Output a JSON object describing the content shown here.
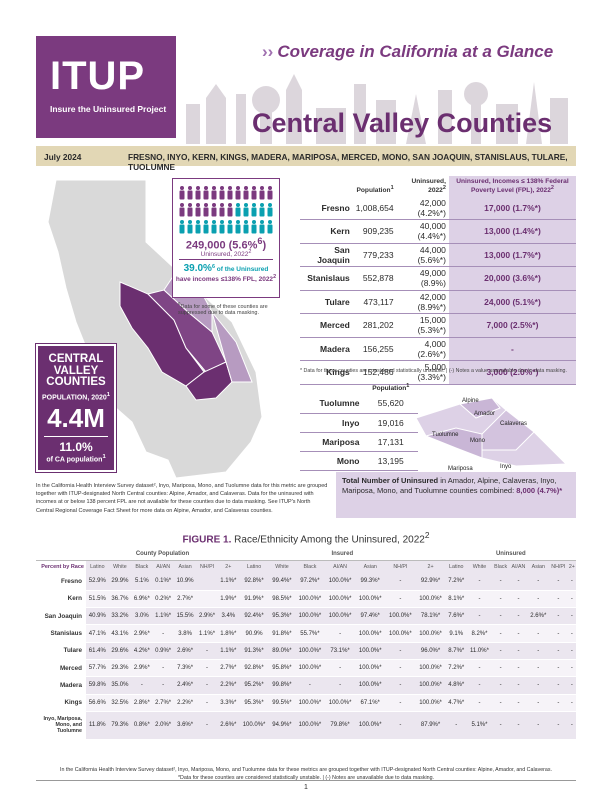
{
  "header": {
    "logo": "ITUP",
    "logo_sub": "Insure the Uninsured Project",
    "coverage_title": "Coverage in California at a Glance",
    "chevrons": "››",
    "title": "Central Valley Counties",
    "date": "July 2024",
    "counties": "FRESNO, INYO, KERN, KINGS, MADERA, MARIPOSA, MERCED, MONO, SAN JOAQUIN, STANISLAUS, TULARE, TUOLUMNE"
  },
  "colors": {
    "brand_purple": "#7b3a7f",
    "highlight": "#ddd1e6",
    "teal": "#0aa0b0",
    "tan": "#e2d7b5"
  },
  "region_box": {
    "line1": "CENTRAL",
    "line2": "VALLEY",
    "line3": "COUNTIES",
    "pop_label": "POPULATION, 2020",
    "pop_sup": "1",
    "pop_value": "4.4M",
    "share_value": "11.0%",
    "share_label": "of CA population",
    "share_sup": "1"
  },
  "uninsured_box": {
    "total": "249,000 (5.6%",
    "total_sup": "6",
    "total_close": ")",
    "total_label": "Uninsured, 2022",
    "total_label_sup": "2",
    "pct": "39.0%",
    "pct_sup": "6",
    "pct_text1": " of the Uninsured",
    "pct_text2": "have incomes ≤138% FPL, 2022",
    "pct_text2_sup": "2",
    "note": "Data for some of these counties are suppressed due to data masking.",
    "note_sup": "6"
  },
  "main_table": {
    "headers": [
      "",
      "Population",
      "Uninsured, 2022",
      "Uninsured, Incomes ≤ 138% Federal Poverty Level (FPL), 2022"
    ],
    "header_sups": [
      "",
      "1",
      "2",
      "2"
    ],
    "rows": [
      {
        "name": "Fresno",
        "pop": "1,008,654",
        "unins": "42,000 (4.2%*)",
        "low": "17,000 (1.7%*)"
      },
      {
        "name": "Kern",
        "pop": "909,235",
        "unins": "40,000 (4.4%*)",
        "low": "13,000 (1.4%*)"
      },
      {
        "name": "San Joaquin",
        "pop": "779,233",
        "unins": "44,000 (5.6%*)",
        "low": "13,000 (1.7%*)"
      },
      {
        "name": "Stanislaus",
        "pop": "552,878",
        "unins": "49,000 (8.9%)",
        "low": "20,000 (3.6%*)"
      },
      {
        "name": "Tulare",
        "pop": "473,117",
        "unins": "42,000 (8.9%*)",
        "low": "24,000 (5.1%*)"
      },
      {
        "name": "Merced",
        "pop": "281,202",
        "unins": "15,000 (5.3%*)",
        "low": "7,000 (2.5%*)"
      },
      {
        "name": "Madera",
        "pop": "156,255",
        "unins": "4,000 (2.6%*)",
        "low": "-"
      },
      {
        "name": "Kings",
        "pop": "152,486",
        "unins": "5,000 (3.3%*)",
        "low": "3,000 (2.0%*)"
      }
    ],
    "note": "* Data for these counties are considered statistically unstable. | (-) Notes a value unavailable due to data masking."
  },
  "small_table": {
    "header": "Population",
    "header_sup": "1",
    "rows": [
      {
        "name": "Tuolumne",
        "pop": "55,620"
      },
      {
        "name": "Inyo",
        "pop": "19,016"
      },
      {
        "name": "Mariposa",
        "pop": "17,131"
      },
      {
        "name": "Mono",
        "pop": "13,195"
      }
    ]
  },
  "mini_map_labels": [
    "Alpine",
    "Amador",
    "Calaveras",
    "Tuolumne",
    "Mono",
    "Mariposa",
    "Inyo"
  ],
  "total_box": {
    "bold": "Total Number of Uninsured",
    "text": " in Amador, Alpine, Calaveras, Inyo, Mariposa, Mono, and Tuolumne counties combined: ",
    "value": "8,000 (4.7%)*"
  },
  "paragraph": "In the California Health Interview Survey dataset², Inyo, Mariposa, Mono, and Tuolumne data for this metric are grouped together with ITUP-designated North Central counties: Alpine, Amador, and Calaveras. Data for the uninsured with incomes at or below 138 percent FPL are not available for these counties due to data masking. See ITUP's North Central Regional Coverage Fact Sheet for more data on Alpine, Amador, and Calaveras counties.",
  "figure": {
    "label": "FIGURE 1.",
    "title": " Race/Ethnicity Among the Uninsured, 2022",
    "title_sup": "2",
    "groups": [
      "County Population",
      "Insured",
      "Uninsured"
    ],
    "row_label": "Percent by Race",
    "sub_headers": [
      "Latino",
      "White",
      "Black",
      "AI/AN",
      "Asian",
      "NH/PI",
      "2+"
    ],
    "rows": [
      {
        "name": "Fresno",
        "cells": [
          "52.9%",
          "29.9%",
          "5.1%",
          "0.1%*",
          "10.9%",
          "",
          "1.1%*",
          "92.8%*",
          "99.4%*",
          "97.2%*",
          "100.0%*",
          "99.3%*",
          "-",
          "92.9%*",
          "7.2%*",
          "-",
          "-",
          "-",
          "-",
          "-",
          "-"
        ]
      },
      {
        "name": "Kern",
        "cells": [
          "51.5%",
          "36.7%",
          "6.9%*",
          "0.2%*",
          "2.7%*",
          "",
          "1.9%*",
          "91.9%*",
          "98.5%*",
          "100.0%*",
          "100.0%*",
          "100.0%*",
          "-",
          "100.0%*",
          "8.1%*",
          "-",
          "-",
          "-",
          "-",
          "-",
          "-"
        ]
      },
      {
        "name": "San Joaquin",
        "cells": [
          "40.9%",
          "33.2%",
          "3.0%",
          "1.1%*",
          "15.5%",
          "2.9%*",
          "3.4%",
          "92.4%*",
          "95.3%*",
          "100.0%*",
          "100.0%*",
          "97.4%*",
          "100.0%*",
          "78.1%*",
          "7.6%*",
          "-",
          "-",
          "-",
          "2.6%*",
          "-",
          "-"
        ]
      },
      {
        "name": "Stanislaus",
        "cells": [
          "47.1%",
          "43.1%",
          "2.9%*",
          "-",
          "3.8%",
          "1.1%*",
          "1.8%*",
          "90.9%",
          "91.8%*",
          "55.7%*",
          "-",
          "100.0%*",
          "100.0%*",
          "100.0%*",
          "9.1%",
          "8.2%*",
          "-",
          "-",
          "-",
          "-",
          "-"
        ]
      },
      {
        "name": "Tulare",
        "cells": [
          "61.4%",
          "29.6%",
          "4.2%*",
          "0.9%*",
          "2.6%*",
          "-",
          "1.1%*",
          "91.3%*",
          "89.0%*",
          "100.0%*",
          "73.1%*",
          "100.0%*",
          "-",
          "96.0%*",
          "8.7%*",
          "11.0%*",
          "-",
          "-",
          "-",
          "-",
          "-"
        ]
      },
      {
        "name": "Merced",
        "cells": [
          "57.7%",
          "29.3%",
          "2.9%*",
          "-",
          "7.3%*",
          "-",
          "2.7%*",
          "92.8%*",
          "95.8%*",
          "100.0%*",
          "-",
          "100.0%*",
          "-",
          "100.0%*",
          "7.2%*",
          "-",
          "-",
          "-",
          "-",
          "-",
          "-"
        ]
      },
      {
        "name": "Madera",
        "cells": [
          "59.8%",
          "35.0%",
          "-",
          "-",
          "2.4%*",
          "-",
          "2.2%*",
          "95.2%*",
          "99.8%*",
          "-",
          "-",
          "100.0%*",
          "-",
          "100.0%*",
          "4.8%*",
          "-",
          "-",
          "-",
          "-",
          "-",
          "-"
        ]
      },
      {
        "name": "Kings",
        "cells": [
          "56.6%",
          "32.5%",
          "2.8%*",
          "2.7%*",
          "2.2%*",
          "-",
          "3.3%*",
          "95.3%*",
          "99.5%*",
          "100.0%*",
          "100.0%*",
          "67.1%*",
          "-",
          "100.0%*",
          "4.7%*",
          "-",
          "-",
          "-",
          "-",
          "-",
          "-"
        ]
      },
      {
        "name": "Inyo, Mariposa, Mono, and Tuolumne",
        "cells": [
          "11.8%",
          "79.3%",
          "0.8%*",
          "2.0%*",
          "3.6%*",
          "-",
          "2.6%*",
          "100.0%*",
          "94.9%*",
          "100.0%*",
          "79.8%*",
          "100.0%*",
          "-",
          "87.9%*",
          "-",
          "5.1%*",
          "-",
          "-",
          "-",
          "-",
          "-"
        ]
      }
    ],
    "note1": "In the California Health Interview Survey dataset², Inyo, Mariposa, Mono, and Tuolumne data for these metrics are grouped together with ITUP-designated North Central counties: Alpine, Amador, and Calaveras.",
    "note2": "*Data for these counties are considered statistically unstable. | (-) Notes are unavailable due to data masking."
  },
  "page_number": "1"
}
